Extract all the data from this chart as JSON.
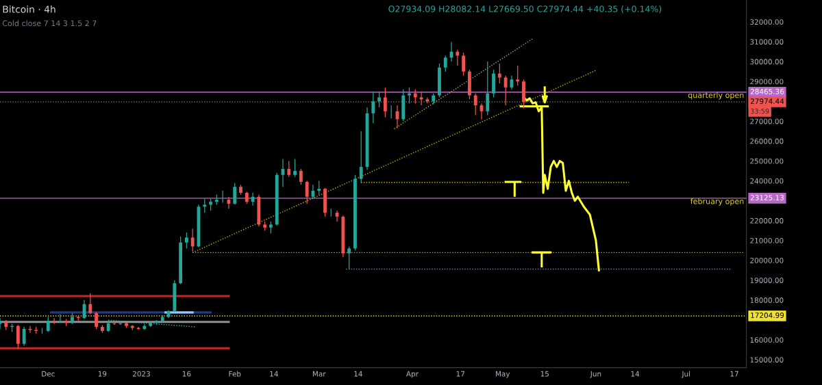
{
  "chart_data": {
    "type": "candlestick",
    "title": "Bitcoin · 4h",
    "annotations": [
      "O27934.09 H28082.14 L27669.50 C27974.44 +40.35 (+0.14%)",
      "Cold close 7 14 3 1.5 2 7",
      "33:59",
      {
        "text": "28465.36",
        "x": "2023-07-21",
        "y": 28465.36
      },
      {
        "text": "27974.44",
        "x": "2023-07-21",
        "y": 27974.44
      },
      {
        "text": "23125.13",
        "x": "2023-07-21",
        "y": 23125.13
      },
      {
        "text": "17204.99",
        "x": "2023-07-21",
        "y": 17204.99
      }
    ],
    "colors": [
      "#26a69a",
      "#ef5350",
      "#26a69a",
      "#ef5350",
      "#26a69a",
      "#ef5350",
      "#ef5350",
      "#26a69a",
      "#26a69a",
      "#ef5350",
      "#26a69a",
      "#ef5350",
      "#26a69a",
      "#ef5350",
      "#26a69a",
      "#ef5350",
      "#ef5350",
      "#ef5350",
      "#26a69a",
      "#ef5350",
      "#26a69a",
      "#ef5350",
      "#ef5350",
      "#ef5350",
      "#26a69a",
      "#26a69a",
      "#26a69a",
      "#26a69a",
      "#26a69a",
      "#26a69a",
      "#26a69a",
      "#26a69a",
      "#ef5350",
      "#26a69a",
      "#26a69a",
      "#26a69a",
      "#26a69a",
      "#26a69a",
      "#ef5350",
      "#26a69a",
      "#ef5350",
      "#ef5350",
      "#26a69a",
      "#ef5350",
      "#ef5350",
      "#26a69a",
      "#26a69a",
      "#26a69a",
      "#ef5350",
      "#26a69a",
      "#ef5350",
      "#ef5350",
      "#26a69a",
      "#26a69a",
      "#ef5350",
      "#26a69a",
      "#ef5350",
      "#ef5350",
      "#26a69a",
      "#26a69a",
      "#26a69a",
      "#26a69a",
      "#26a69a",
      "#26a69a",
      "#ef5350",
      "#26a69a",
      "#ef5350",
      "#26a69a",
      "#26a69a",
      "#ef5350",
      "#ef5350",
      "#ef5350",
      "#26a69a",
      "#26a69a",
      "#26a69a",
      "#26a69a",
      "#ef5350",
      "#ef5350",
      "#ef5350",
      "#ef5350",
      "#ef5350",
      "#26a69a",
      "#26a69a",
      "#ef5350",
      "#ef5350",
      "#26a69a",
      "#ef5350",
      "#ef5350"
    ],
    "x": [
      "2022-11-15",
      "2022-11-17",
      "2022-11-19",
      "2022-11-21",
      "2022-11-23",
      "2022-11-25",
      "2022-11-27",
      "2022-11-29",
      "2022-12-01",
      "2022-12-03",
      "2022-12-05",
      "2022-12-07",
      "2022-12-09",
      "2022-12-11",
      "2022-12-13",
      "2022-12-15",
      "2022-12-17",
      "2022-12-19",
      "2022-12-21",
      "2022-12-23",
      "2022-12-25",
      "2022-12-27",
      "2022-12-29",
      "2022-12-31",
      "2023-01-02",
      "2023-01-04",
      "2023-01-06",
      "2023-01-08",
      "2023-01-10",
      "2023-01-12",
      "2023-01-14",
      "2023-01-16",
      "2023-01-18",
      "2023-01-20",
      "2023-01-22",
      "2023-01-24",
      "2023-01-26",
      "2023-01-28",
      "2023-01-30",
      "2023-02-01",
      "2023-02-03",
      "2023-02-05",
      "2023-02-07",
      "2023-02-09",
      "2023-02-11",
      "2023-02-13",
      "2023-02-15",
      "2023-02-17",
      "2023-02-19",
      "2023-02-21",
      "2023-02-23",
      "2023-02-25",
      "2023-02-27",
      "2023-03-01",
      "2023-03-03",
      "2023-03-05",
      "2023-03-07",
      "2023-03-09",
      "2023-03-11",
      "2023-03-13",
      "2023-03-15",
      "2023-03-17",
      "2023-03-19",
      "2023-03-21",
      "2023-03-23",
      "2023-03-25",
      "2023-03-27",
      "2023-03-29",
      "2023-03-31",
      "2023-04-02",
      "2023-04-04",
      "2023-04-06",
      "2023-04-08",
      "2023-04-10",
      "2023-04-12",
      "2023-04-14",
      "2023-04-16",
      "2023-04-18",
      "2023-04-20",
      "2023-04-22",
      "2023-04-24",
      "2023-04-26",
      "2023-04-28",
      "2023-04-30",
      "2023-05-02",
      "2023-05-04",
      "2023-05-06",
      "2023-05-08"
    ],
    "ohlc": [
      [
        16800,
        17100,
        16550,
        16900
      ],
      [
        16900,
        17000,
        16500,
        16650
      ],
      [
        16650,
        16800,
        16400,
        16700
      ],
      [
        16700,
        16750,
        15550,
        15800
      ],
      [
        15800,
        16650,
        15700,
        16550
      ],
      [
        16550,
        16700,
        16350,
        16500
      ],
      [
        16500,
        16650,
        16300,
        16450
      ],
      [
        16450,
        16600,
        16300,
        16450
      ],
      [
        16450,
        17150,
        16400,
        16950
      ],
      [
        16950,
        17100,
        16800,
        16900
      ],
      [
        16900,
        17300,
        16850,
        16950
      ],
      [
        16950,
        17050,
        16700,
        16850
      ],
      [
        16850,
        17350,
        16800,
        17150
      ],
      [
        17150,
        17250,
        16950,
        17100
      ],
      [
        17100,
        18000,
        17050,
        17800
      ],
      [
        17800,
        18350,
        17300,
        17350
      ],
      [
        17350,
        17400,
        16550,
        16650
      ],
      [
        16650,
        16750,
        16350,
        16450
      ],
      [
        16450,
        16950,
        16400,
        16830
      ],
      [
        16830,
        16900,
        16750,
        16800
      ],
      [
        16800,
        16900,
        16750,
        16840
      ],
      [
        16840,
        16900,
        16600,
        16700
      ],
      [
        16700,
        16750,
        16500,
        16600
      ],
      [
        16600,
        16650,
        16500,
        16550
      ],
      [
        16550,
        16800,
        16500,
        16700
      ],
      [
        16700,
        16950,
        16650,
        16850
      ],
      [
        16850,
        17000,
        16750,
        16950
      ],
      [
        16950,
        17250,
        16900,
        17150
      ],
      [
        17150,
        17500,
        17100,
        17450
      ],
      [
        17450,
        19000,
        17400,
        18850
      ],
      [
        18850,
        21200,
        18800,
        20900
      ],
      [
        20900,
        21400,
        20600,
        21150
      ],
      [
        21150,
        21600,
        20450,
        20700
      ],
      [
        20700,
        22800,
        20650,
        22700
      ],
      [
        22700,
        23100,
        22400,
        22800
      ],
      [
        22800,
        23100,
        22500,
        22950
      ],
      [
        22950,
        23300,
        22800,
        23050
      ],
      [
        23050,
        23500,
        22900,
        23050
      ],
      [
        23050,
        23200,
        22600,
        22850
      ],
      [
        22850,
        23900,
        22800,
        23700
      ],
      [
        23700,
        23800,
        23300,
        23400
      ],
      [
        23400,
        23450,
        22850,
        22950
      ],
      [
        22950,
        23400,
        22750,
        23200
      ],
      [
        23200,
        23300,
        21700,
        21800
      ],
      [
        21800,
        21950,
        21500,
        21650
      ],
      [
        21650,
        21950,
        21350,
        21800
      ],
      [
        21800,
        24400,
        21750,
        24300
      ],
      [
        24300,
        25100,
        23700,
        24600
      ],
      [
        24600,
        25000,
        24200,
        24300
      ],
      [
        24300,
        25100,
        24200,
        24500
      ],
      [
        24500,
        24600,
        23800,
        23950
      ],
      [
        23950,
        24000,
        22850,
        23200
      ],
      [
        23200,
        23800,
        23100,
        23500
      ],
      [
        23500,
        24000,
        23300,
        23600
      ],
      [
        23600,
        23650,
        22200,
        22400
      ],
      [
        22400,
        22600,
        22200,
        22400
      ],
      [
        22400,
        22500,
        21950,
        22200
      ],
      [
        22200,
        22250,
        20150,
        20350
      ],
      [
        20350,
        20700,
        19550,
        20600
      ],
      [
        20600,
        24300,
        20500,
        24100
      ],
      [
        24100,
        26500,
        23900,
        24700
      ],
      [
        24700,
        27700,
        24550,
        27400
      ],
      [
        27400,
        28500,
        26900,
        28000
      ],
      [
        28000,
        28500,
        27700,
        28200
      ],
      [
        28200,
        28700,
        27200,
        27500
      ],
      [
        27500,
        27800,
        27150,
        27500
      ],
      [
        27500,
        27800,
        26650,
        27100
      ],
      [
        27100,
        28600,
        27000,
        28300
      ],
      [
        28300,
        28700,
        27900,
        28400
      ],
      [
        28400,
        28600,
        27900,
        28200
      ],
      [
        28200,
        28500,
        27800,
        28100
      ],
      [
        28100,
        28200,
        27900,
        28000
      ],
      [
        28000,
        28400,
        27850,
        28300
      ],
      [
        28300,
        29900,
        28200,
        29700
      ],
      [
        29700,
        30300,
        29500,
        30200
      ],
      [
        30200,
        30980,
        30000,
        30500
      ],
      [
        30500,
        30600,
        29800,
        30300
      ],
      [
        30300,
        30450,
        29300,
        29500
      ],
      [
        29500,
        29600,
        28100,
        28300
      ],
      [
        28300,
        28400,
        27300,
        27800
      ],
      [
        27800,
        27900,
        27100,
        27500
      ],
      [
        27500,
        30000,
        27300,
        28400
      ],
      [
        28400,
        29600,
        28200,
        29400
      ],
      [
        29400,
        29900,
        28900,
        29200
      ],
      [
        29200,
        29300,
        27800,
        28700
      ],
      [
        28700,
        29300,
        28600,
        29100
      ],
      [
        29100,
        29800,
        28800,
        29000
      ],
      [
        29000,
        29100,
        27650,
        27974.44
      ]
    ],
    "series": [
      {
        "type": "line",
        "color": "#c62828",
        "line_style": "solid",
        "x": [
          "2022-11-15",
          "2023-01-30"
        ],
        "values": [
          18200,
          18200
        ]
      },
      {
        "type": "line",
        "color": "#c62828",
        "line_style": "solid",
        "x": [
          "2022-11-15",
          "2023-01-30"
        ],
        "values": [
          15580,
          15580
        ]
      },
      {
        "type": "line",
        "color": "#8f9299",
        "line_style": "solid",
        "x": [
          "2022-11-15",
          "2023-01-30"
        ],
        "values": [
          16900,
          16900
        ]
      },
      {
        "type": "line",
        "color": "#1e3a8a",
        "line_style": "solid",
        "x": [
          "2022-12-02",
          "2023-01-24"
        ],
        "values": [
          17380,
          17380
        ]
      },
      {
        "type": "line",
        "color": "#90caf9",
        "line_style": "solid",
        "x": [
          "2023-01-09",
          "2023-01-18"
        ],
        "values": [
          17380,
          17380
        ]
      },
      {
        "type": "line",
        "color": "#4db6ac",
        "line_style": "dotted",
        "x": [
          "2022-12-21",
          "2023-01-19"
        ],
        "values": [
          16990,
          16650
        ]
      },
      {
        "type": "line",
        "color": "#c8b400",
        "line_style": "dotted",
        "x": [
          "2023-01-18",
          "2023-07-20"
        ],
        "values": [
          20390,
          20390
        ]
      },
      {
        "type": "line",
        "color": "#5c7cfa",
        "line_style": "dotted",
        "x": [
          "2023-03-10",
          "2023-07-16"
        ],
        "values": [
          19560,
          19560
        ]
      },
      {
        "type": "line",
        "color": "#c8b400",
        "line_style": "dotted",
        "x": [
          "2023-03-15",
          "2023-06-12"
        ],
        "values": [
          23920,
          23920
        ]
      },
      {
        "type": "line",
        "color": "#c8b400",
        "line_style": "dotted",
        "x": [
          "2023-01-18",
          "2023-06-01"
        ],
        "values": [
          20390,
          29560
        ]
      },
      {
        "type": "line",
        "color": "#c8b400",
        "line_style": "dotted",
        "x": [
          "2023-03-26",
          "2023-05-11"
        ],
        "values": [
          26620,
          31150
        ]
      },
      {
        "type": "line",
        "color": "#ffff33",
        "line_style": "solid",
        "x": [
          "2023-05-08",
          "2023-05-09",
          "2023-05-10",
          "2023-05-11",
          "2023-05-12",
          "2023-05-13",
          "2023-05-14",
          "2023-05-14T12:00",
          "2023-05-15",
          "2023-05-16",
          "2023-05-17",
          "2023-05-18",
          "2023-05-19",
          "2023-05-20",
          "2023-05-21",
          "2023-05-22",
          "2023-05-23",
          "2023-05-24",
          "2023-05-25",
          "2023-05-26",
          "2023-05-28",
          "2023-05-30",
          "2023-06-01",
          "2023-06-02"
        ],
        "values": [
          28200,
          28050,
          28150,
          27900,
          27950,
          27500,
          27700,
          23400,
          24300,
          23600,
          24700,
          25000,
          24700,
          25000,
          24900,
          23500,
          24000,
          23400,
          23000,
          23200,
          22700,
          22300,
          21000,
          19500
        ]
      },
      {
        "type": "line",
        "color": "#ffff33",
        "line_style": "solid",
        "x": [
          "2023-05-07",
          "2023-05-16"
        ],
        "values": [
          27750,
          27750
        ]
      },
      {
        "type": "line",
        "color": "#ffff33",
        "line_style": "solid",
        "x": [
          "2023-05-15",
          "2023-05-15",
          "2023-05-14T08:00",
          "2023-05-15",
          "2023-05-15T16:00"
        ],
        "values": [
          28700,
          27950,
          28250,
          27950,
          28250
        ]
      },
      {
        "type": "line",
        "color": "#ffff33",
        "line_style": "solid",
        "x": [
          "2023-05-02",
          "2023-05-07",
          "2023-05-05",
          "2023-05-05"
        ],
        "values": [
          23950,
          23950,
          23950,
          23250
        ]
      },
      {
        "type": "line",
        "color": "#ffff33",
        "line_style": "solid",
        "x": [
          "2023-05-11",
          "2023-05-17",
          "2023-05-14",
          "2023-05-14"
        ],
        "values": [
          20400,
          20400,
          20400,
          19700
        ]
      }
    ],
    "ref_lines": [
      {
        "axis": "y",
        "value": 28465.36,
        "label": "quarterly open",
        "color": "#ba68c8",
        "line_style": "solid"
      },
      {
        "axis": "y",
        "value": 23125.13,
        "label": "february open",
        "color": "#ba68c8",
        "line_style": "solid"
      },
      {
        "axis": "y",
        "value": 17204.99,
        "label": null,
        "color": "#f0e130",
        "line_style": "dotted"
      },
      {
        "axis": "y",
        "value": 27974.44,
        "label": null,
        "color": "#6b6f78",
        "line_style": "dotted"
      }
    ],
    "xlim": [
      "2022-11-15",
      "2023-07-21"
    ],
    "xticks": [
      {
        "value": "2022-12-01",
        "label": "Dec"
      },
      {
        "value": "2022-12-19",
        "label": "19"
      },
      {
        "value": "2023-01-01",
        "label": "2023"
      },
      {
        "value": "2023-01-16",
        "label": "16"
      },
      {
        "value": "2023-02-01",
        "label": "Feb"
      },
      {
        "value": "2023-02-14",
        "label": "14"
      },
      {
        "value": "2023-03-01",
        "label": "Mar"
      },
      {
        "value": "2023-03-14",
        "label": "14"
      },
      {
        "value": "2023-04-01",
        "label": "Apr"
      },
      {
        "value": "2023-04-17",
        "label": "17"
      },
      {
        "value": "2023-05-01",
        "label": "May"
      },
      {
        "value": "2023-05-15",
        "label": "15"
      },
      {
        "value": "2023-06-01",
        "label": "Jun"
      },
      {
        "value": "2023-06-14",
        "label": "14"
      },
      {
        "value": "2023-07-01",
        "label": "Jul"
      },
      {
        "value": "2023-07-17",
        "label": "17"
      }
    ],
    "ylim": [
      14600,
      33100
    ],
    "yticks": [
      {
        "value": 15000,
        "label": "15000.00"
      },
      {
        "value": 16000,
        "label": "16000.00"
      },
      {
        "value": 18000,
        "label": "18000.00"
      },
      {
        "value": 19000,
        "label": "19000.00"
      },
      {
        "value": 20000,
        "label": "20000.00"
      },
      {
        "value": 21000,
        "label": "21000.00"
      },
      {
        "value": 22000,
        "label": "22000.00"
      },
      {
        "value": 24000,
        "label": "24000.00"
      },
      {
        "value": 25000,
        "label": "25000.00"
      },
      {
        "value": 26000,
        "label": "26000.00"
      },
      {
        "value": 27000,
        "label": "27000.00"
      },
      {
        "value": 29000,
        "label": "29000.00"
      },
      {
        "value": 30000,
        "label": "30000.00"
      },
      {
        "value": 31000,
        "label": "31000.00"
      },
      {
        "value": 32000,
        "label": "32000.00"
      }
    ],
    "grid": false,
    "legend": false
  }
}
